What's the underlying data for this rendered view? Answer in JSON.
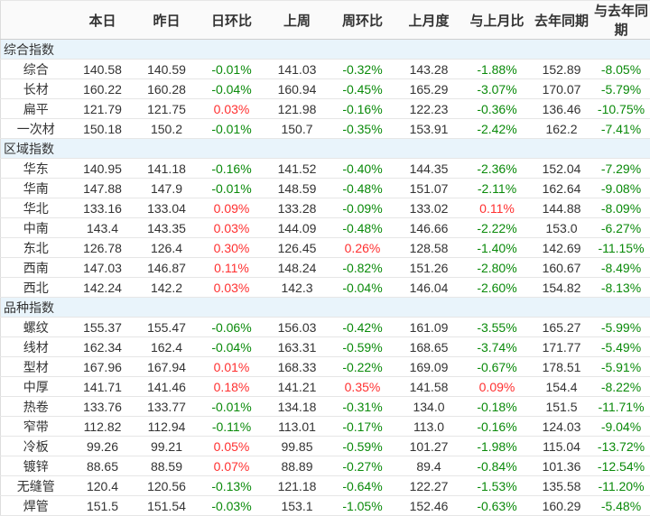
{
  "colors": {
    "up_red": "#ff3030",
    "down_green": "#0a8a0a",
    "section_bg": "#e9f4fb",
    "header_bg": "#fafafa",
    "text": "#333333"
  },
  "table": {
    "columns": [
      "",
      "本日",
      "昨日",
      "日环比",
      "上周",
      "周环比",
      "上月度",
      "与上月比",
      "去年同期",
      "与去年同期"
    ],
    "percent_value_indices": [
      2,
      4,
      6,
      8
    ],
    "groups": [
      {
        "title": "综合指数",
        "rows": [
          {
            "label": "综合",
            "values": [
              "140.58",
              "140.59",
              "-0.01%",
              "141.03",
              "-0.32%",
              "143.28",
              "-1.88%",
              "152.89",
              "-8.05%"
            ]
          },
          {
            "label": "长材",
            "values": [
              "160.22",
              "160.28",
              "-0.04%",
              "160.94",
              "-0.45%",
              "165.29",
              "-3.07%",
              "170.07",
              "-5.79%"
            ]
          },
          {
            "label": "扁平",
            "values": [
              "121.79",
              "121.75",
              "0.03%",
              "121.98",
              "-0.16%",
              "122.23",
              "-0.36%",
              "136.46",
              "-10.75%"
            ]
          },
          {
            "label": "一次材",
            "values": [
              "150.18",
              "150.2",
              "-0.01%",
              "150.7",
              "-0.35%",
              "153.91",
              "-2.42%",
              "162.2",
              "-7.41%"
            ]
          }
        ]
      },
      {
        "title": "区域指数",
        "rows": [
          {
            "label": "华东",
            "values": [
              "140.95",
              "141.18",
              "-0.16%",
              "141.52",
              "-0.40%",
              "144.35",
              "-2.36%",
              "152.04",
              "-7.29%"
            ]
          },
          {
            "label": "华南",
            "values": [
              "147.88",
              "147.9",
              "-0.01%",
              "148.59",
              "-0.48%",
              "151.07",
              "-2.11%",
              "162.64",
              "-9.08%"
            ]
          },
          {
            "label": "华北",
            "values": [
              "133.16",
              "133.04",
              "0.09%",
              "133.28",
              "-0.09%",
              "133.02",
              "0.11%",
              "144.88",
              "-8.09%"
            ]
          },
          {
            "label": "中南",
            "values": [
              "143.4",
              "143.35",
              "0.03%",
              "144.09",
              "-0.48%",
              "146.66",
              "-2.22%",
              "153.0",
              "-6.27%"
            ]
          },
          {
            "label": "东北",
            "values": [
              "126.78",
              "126.4",
              "0.30%",
              "126.45",
              "0.26%",
              "128.58",
              "-1.40%",
              "142.69",
              "-11.15%"
            ]
          },
          {
            "label": "西南",
            "values": [
              "147.03",
              "146.87",
              "0.11%",
              "148.24",
              "-0.82%",
              "151.26",
              "-2.80%",
              "160.67",
              "-8.49%"
            ]
          },
          {
            "label": "西北",
            "values": [
              "142.24",
              "142.2",
              "0.03%",
              "142.3",
              "-0.04%",
              "146.04",
              "-2.60%",
              "154.82",
              "-8.13%"
            ]
          }
        ]
      },
      {
        "title": "品种指数",
        "rows": [
          {
            "label": "螺纹",
            "values": [
              "155.37",
              "155.47",
              "-0.06%",
              "156.03",
              "-0.42%",
              "161.09",
              "-3.55%",
              "165.27",
              "-5.99%"
            ]
          },
          {
            "label": "线材",
            "values": [
              "162.34",
              "162.4",
              "-0.04%",
              "163.31",
              "-0.59%",
              "168.65",
              "-3.74%",
              "171.77",
              "-5.49%"
            ]
          },
          {
            "label": "型材",
            "values": [
              "167.96",
              "167.94",
              "0.01%",
              "168.33",
              "-0.22%",
              "169.09",
              "-0.67%",
              "178.51",
              "-5.91%"
            ]
          },
          {
            "label": "中厚",
            "values": [
              "141.71",
              "141.46",
              "0.18%",
              "141.21",
              "0.35%",
              "141.58",
              "0.09%",
              "154.4",
              "-8.22%"
            ]
          },
          {
            "label": "热卷",
            "values": [
              "133.76",
              "133.77",
              "-0.01%",
              "134.18",
              "-0.31%",
              "134.0",
              "-0.18%",
              "151.5",
              "-11.71%"
            ]
          },
          {
            "label": "窄带",
            "values": [
              "112.82",
              "112.94",
              "-0.11%",
              "113.01",
              "-0.17%",
              "113.0",
              "-0.16%",
              "124.03",
              "-9.04%"
            ]
          },
          {
            "label": "冷板",
            "values": [
              "99.26",
              "99.21",
              "0.05%",
              "99.85",
              "-0.59%",
              "101.27",
              "-1.98%",
              "115.04",
              "-13.72%"
            ]
          },
          {
            "label": "镀锌",
            "values": [
              "88.65",
              "88.59",
              "0.07%",
              "88.89",
              "-0.27%",
              "89.4",
              "-0.84%",
              "101.36",
              "-12.54%"
            ]
          },
          {
            "label": "无缝管",
            "values": [
              "120.4",
              "120.56",
              "-0.13%",
              "121.18",
              "-0.64%",
              "122.27",
              "-1.53%",
              "135.58",
              "-11.20%"
            ]
          },
          {
            "label": "焊管",
            "values": [
              "151.5",
              "151.54",
              "-0.03%",
              "153.1",
              "-1.05%",
              "152.46",
              "-0.63%",
              "160.29",
              "-5.48%"
            ]
          }
        ]
      }
    ]
  }
}
